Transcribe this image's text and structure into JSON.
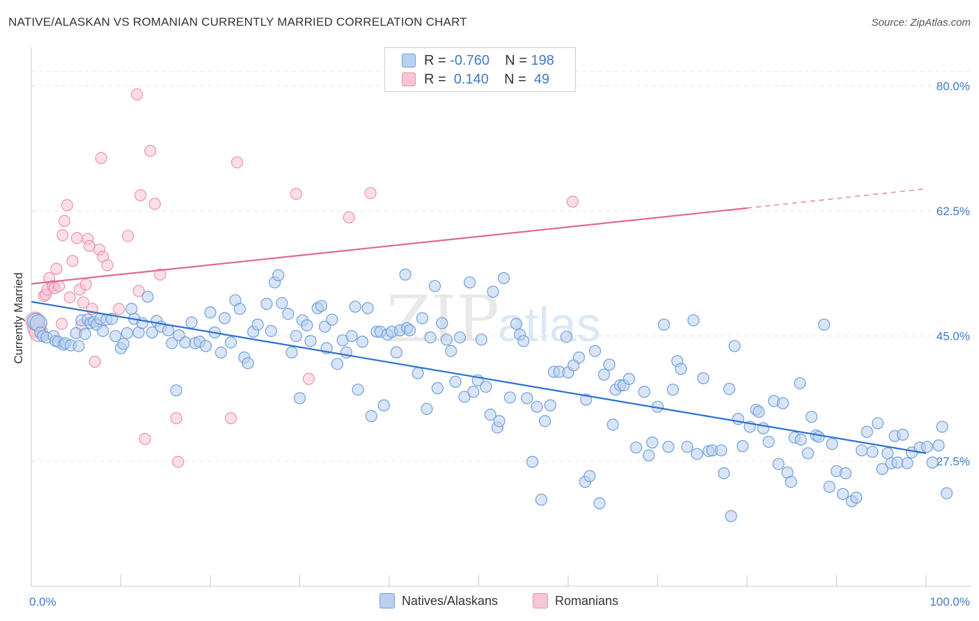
{
  "header": {
    "title": "NATIVE/ALASKAN VS ROMANIAN CURRENTLY MARRIED CORRELATION CHART",
    "source": "Source: ZipAtlas.com"
  },
  "watermark": {
    "zip": "ZIP",
    "atlas": "atlas"
  },
  "legend": {
    "series": [
      {
        "r_label": "R =",
        "r_value": "-0.760",
        "n_label": "N =",
        "n_value": "198"
      },
      {
        "r_label": "R =",
        "r_value": " 0.140",
        "n_label": "N =",
        "n_value": " 49"
      }
    ]
  },
  "bottom_legend": {
    "series1": "Natives/Alaskans",
    "series2": "Romanians"
  },
  "colors": {
    "blue_fill": "#b9d0f0",
    "blue_stroke": "#6f9fd8",
    "blue_line": "#2a6fd0",
    "pink_fill": "#f7c5d3",
    "pink_stroke": "#ea92ad",
    "pink_line": "#e0688f",
    "tick_text": "#3f7ac8",
    "grid": "#e4e4e4"
  },
  "chart_data": {
    "type": "scatter",
    "title": "NATIVE/ALASKAN VS ROMANIAN CURRENTLY MARRIED CORRELATION CHART",
    "xlabel": "",
    "ylabel": "Currently Married",
    "xlim": [
      0,
      100
    ],
    "ylim": [
      10,
      85
    ],
    "x_tick_labels": [
      "0.0%",
      "100.0%"
    ],
    "y_ticks": [
      27.5,
      45.0,
      62.5,
      80.0
    ],
    "y_tick_labels": [
      "27.5%",
      "45.0%",
      "62.5%",
      "80.0%"
    ],
    "grid": true,
    "legend_position": "top-center",
    "series": [
      {
        "name": "Natives/Alaskans",
        "r": -0.76,
        "n": 198,
        "trend": {
          "x": [
            0,
            100
          ],
          "y": [
            49.8,
            28.6
          ]
        },
        "points": [
          [
            0.5,
            47
          ],
          [
            0.8,
            46.8
          ],
          [
            1,
            45.5
          ],
          [
            1.3,
            45
          ],
          [
            1.7,
            44.8
          ],
          [
            2.5,
            45
          ],
          [
            2.7,
            44.3
          ],
          [
            3,
            44.2
          ],
          [
            3.6,
            43.8
          ],
          [
            3.8,
            44
          ],
          [
            4.4,
            43.7
          ],
          [
            5,
            45.4
          ],
          [
            5.3,
            43.6
          ],
          [
            5.6,
            47.2
          ],
          [
            6,
            45.3
          ],
          [
            6.3,
            47.3
          ],
          [
            6.6,
            46.8
          ],
          [
            7,
            47
          ],
          [
            7.3,
            46.6
          ],
          [
            7.7,
            47.4
          ],
          [
            8,
            45.7
          ],
          [
            8.4,
            47.3
          ],
          [
            9,
            47.4
          ],
          [
            9.4,
            45
          ],
          [
            10,
            43.3
          ],
          [
            10.3,
            43.9
          ],
          [
            10.7,
            45.4
          ],
          [
            11.2,
            48.8
          ],
          [
            11.5,
            47.4
          ],
          [
            12,
            45.5
          ],
          [
            12.4,
            46.8
          ],
          [
            13,
            50.5
          ],
          [
            13.5,
            45.5
          ],
          [
            14,
            47.1
          ],
          [
            14.5,
            46.3
          ],
          [
            15.3,
            45.8
          ],
          [
            15.7,
            44
          ],
          [
            16.2,
            37.4
          ],
          [
            16.5,
            45.1
          ],
          [
            17.2,
            44.1
          ],
          [
            17.9,
            46.9
          ],
          [
            18.3,
            44
          ],
          [
            18.8,
            44.2
          ],
          [
            19.5,
            43.6
          ],
          [
            20,
            48.3
          ],
          [
            20.5,
            45.5
          ],
          [
            21.2,
            42.7
          ],
          [
            21.6,
            47.5
          ],
          [
            22.3,
            44.1
          ],
          [
            22.8,
            50
          ],
          [
            23.3,
            48.8
          ],
          [
            23.8,
            42
          ],
          [
            24.2,
            41.2
          ],
          [
            24.8,
            45.6
          ],
          [
            25.3,
            46.6
          ],
          [
            26.3,
            49.5
          ],
          [
            26.8,
            45.7
          ],
          [
            27.2,
            52.5
          ],
          [
            27.6,
            53.5
          ],
          [
            28,
            49.6
          ],
          [
            28.7,
            48.1
          ],
          [
            29.1,
            42.7
          ],
          [
            29.6,
            45
          ],
          [
            30,
            36.3
          ],
          [
            30.3,
            47.2
          ],
          [
            30.8,
            46.5
          ],
          [
            31.2,
            44.3
          ],
          [
            32,
            48.9
          ],
          [
            32.4,
            49.2
          ],
          [
            32.8,
            46.3
          ],
          [
            33,
            43.3
          ],
          [
            33.6,
            47.3
          ],
          [
            34.2,
            41.1
          ],
          [
            34.8,
            44.4
          ],
          [
            35.2,
            42.7
          ],
          [
            35.8,
            45
          ],
          [
            36.2,
            49.1
          ],
          [
            36.5,
            37.5
          ],
          [
            37,
            44.2
          ],
          [
            37.6,
            48.9
          ],
          [
            38,
            33.8
          ],
          [
            38.6,
            45.6
          ],
          [
            39,
            45.6
          ],
          [
            39.4,
            35.3
          ],
          [
            39.8,
            45.2
          ],
          [
            40.3,
            45.6
          ],
          [
            40.8,
            42.7
          ],
          [
            41.2,
            45.8
          ],
          [
            41.8,
            53.6
          ],
          [
            42,
            46.1
          ],
          [
            42.3,
            45.8
          ],
          [
            43.2,
            39.8
          ],
          [
            43.7,
            47.5
          ],
          [
            44.2,
            34.8
          ],
          [
            44.6,
            44.8
          ],
          [
            45.1,
            52
          ],
          [
            45.4,
            37.7
          ],
          [
            45.9,
            46.8
          ],
          [
            46.4,
            44.5
          ],
          [
            46.9,
            42.9
          ],
          [
            47.4,
            38.6
          ],
          [
            47.9,
            44.8
          ],
          [
            48.4,
            36.5
          ],
          [
            49,
            52.5
          ],
          [
            49.4,
            37.2
          ],
          [
            49.9,
            38.8
          ],
          [
            50.3,
            44.5
          ],
          [
            50.8,
            37.9
          ],
          [
            51.3,
            34
          ],
          [
            51.6,
            51.2
          ],
          [
            52.1,
            32.2
          ],
          [
            52.3,
            33.1
          ],
          [
            52.8,
            53.1
          ],
          [
            53.5,
            36.4
          ],
          [
            54.2,
            46.7
          ],
          [
            54.6,
            45.2
          ],
          [
            55,
            44.3
          ],
          [
            55.4,
            36.3
          ],
          [
            56,
            27.4
          ],
          [
            56.5,
            35.1
          ],
          [
            57,
            22.1
          ],
          [
            57.4,
            33.1
          ],
          [
            58,
            35.3
          ],
          [
            58.4,
            40
          ],
          [
            59,
            40
          ],
          [
            59.8,
            44.9
          ],
          [
            60,
            39.9
          ],
          [
            60.6,
            40.9
          ],
          [
            61.2,
            42
          ],
          [
            61.9,
            24.6
          ],
          [
            62,
            36.1
          ],
          [
            62.4,
            25.4
          ],
          [
            63,
            42.9
          ],
          [
            63.5,
            21.6
          ],
          [
            64,
            39.6
          ],
          [
            64.6,
            41
          ],
          [
            65,
            32.6
          ],
          [
            65.3,
            37.5
          ],
          [
            65.8,
            38.1
          ],
          [
            66.2,
            38.1
          ],
          [
            66.8,
            39
          ],
          [
            67.6,
            29.4
          ],
          [
            68.5,
            37.2
          ],
          [
            69,
            28.3
          ],
          [
            69.4,
            30.1
          ],
          [
            70,
            35.1
          ],
          [
            70.7,
            46.6
          ],
          [
            71.2,
            29.5
          ],
          [
            71.7,
            37.5
          ],
          [
            72.2,
            41.5
          ],
          [
            72.6,
            40.4
          ],
          [
            73.3,
            29.5
          ],
          [
            74,
            47.2
          ],
          [
            74.4,
            28.5
          ],
          [
            75.1,
            39.1
          ],
          [
            75.7,
            28.9
          ],
          [
            76.1,
            29
          ],
          [
            77.1,
            29
          ],
          [
            77.4,
            25.8
          ],
          [
            78,
            37.6
          ],
          [
            78.2,
            19.8
          ],
          [
            78.6,
            43.6
          ],
          [
            79,
            33.4
          ],
          [
            79.5,
            29.6
          ],
          [
            80.3,
            32.3
          ],
          [
            81,
            34.7
          ],
          [
            81.3,
            34.4
          ],
          [
            81.8,
            32.1
          ],
          [
            82.4,
            30.2
          ],
          [
            83,
            35.9
          ],
          [
            83.5,
            27.1
          ],
          [
            84,
            35.6
          ],
          [
            84.5,
            25.9
          ],
          [
            84.9,
            24.6
          ],
          [
            85.3,
            30.8
          ],
          [
            85.9,
            38.4
          ],
          [
            86,
            30.5
          ],
          [
            86.8,
            28.6
          ],
          [
            87.2,
            33.7
          ],
          [
            87.7,
            31.1
          ],
          [
            88,
            30.9
          ],
          [
            88.6,
            46.6
          ],
          [
            89.2,
            23.9
          ],
          [
            89.5,
            29.9
          ],
          [
            90,
            26.1
          ],
          [
            90.7,
            22.9
          ],
          [
            91,
            25.8
          ],
          [
            91.7,
            21.9
          ],
          [
            92.2,
            22.4
          ],
          [
            92.8,
            29
          ],
          [
            93.4,
            31.6
          ],
          [
            94,
            28.8
          ],
          [
            94.6,
            32.8
          ],
          [
            95.1,
            26.4
          ],
          [
            95.7,
            28.6
          ],
          [
            96.1,
            27.2
          ],
          [
            96.5,
            31
          ],
          [
            96.8,
            27.3
          ],
          [
            97.4,
            31.2
          ],
          [
            97.9,
            27.2
          ],
          [
            98.4,
            28.7
          ],
          [
            99.3,
            29.4
          ],
          [
            100.1,
            29.5
          ],
          [
            100.7,
            27.3
          ],
          [
            101.4,
            29.7
          ],
          [
            101.8,
            32.3
          ],
          [
            102.3,
            23
          ]
        ]
      },
      {
        "name": "Romanians",
        "r": 0.14,
        "n": 49,
        "trend": {
          "x": [
            0,
            80,
            100
          ],
          "y": [
            52.3,
            62.9,
            65.6
          ]
        },
        "points": [
          [
            0.4,
            47.1
          ],
          [
            0.6,
            46.1
          ],
          [
            0.8,
            45.5
          ],
          [
            1.4,
            50.6
          ],
          [
            1.6,
            50.8
          ],
          [
            1.8,
            51.5
          ],
          [
            2,
            53.1
          ],
          [
            2.4,
            52
          ],
          [
            2.6,
            51.7
          ],
          [
            2.8,
            54.4
          ],
          [
            3.1,
            52
          ],
          [
            3.4,
            46.7
          ],
          [
            3.5,
            59.1
          ],
          [
            3.7,
            61.1
          ],
          [
            4,
            63.3
          ],
          [
            4.3,
            50.4
          ],
          [
            4.6,
            55.5
          ],
          [
            5.1,
            58.7
          ],
          [
            5.4,
            51.5
          ],
          [
            5.6,
            46.5
          ],
          [
            5.8,
            49.7
          ],
          [
            6.1,
            52.2
          ],
          [
            6.3,
            58.6
          ],
          [
            6.5,
            57.6
          ],
          [
            6.8,
            48.8
          ],
          [
            7.1,
            41.4
          ],
          [
            7.6,
            57.1
          ],
          [
            7.8,
            69.9
          ],
          [
            8,
            56.1
          ],
          [
            8.5,
            54.9
          ],
          [
            9.8,
            48.8
          ],
          [
            10.8,
            59
          ],
          [
            11.8,
            78.8
          ],
          [
            12,
            51.3
          ],
          [
            12.2,
            64.7
          ],
          [
            12.7,
            30.6
          ],
          [
            13.3,
            70.9
          ],
          [
            13.8,
            63.5
          ],
          [
            14.4,
            53.6
          ],
          [
            16.2,
            33.5
          ],
          [
            16.4,
            27.4
          ],
          [
            22.3,
            33.5
          ],
          [
            23,
            69.3
          ],
          [
            29.6,
            64.9
          ],
          [
            31,
            39
          ],
          [
            35.5,
            61.6
          ],
          [
            37.9,
            65
          ],
          [
            60.5,
            63.8
          ],
          [
            0.9,
            47
          ]
        ]
      }
    ]
  }
}
